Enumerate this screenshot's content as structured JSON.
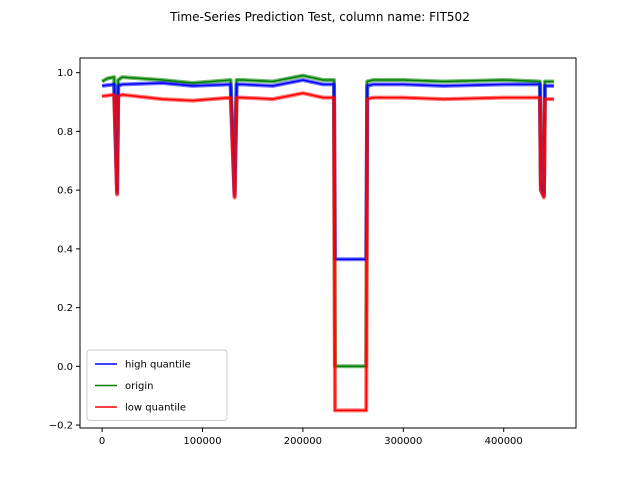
{
  "chart_data": {
    "type": "line",
    "title": "Time-Series Prediction Test, column name: FIT502",
    "xlabel": "",
    "ylabel": "",
    "xlim": [
      -22000,
      472000
    ],
    "ylim": [
      -0.21,
      1.05
    ],
    "x_ticks": [
      0,
      100000,
      200000,
      300000,
      400000
    ],
    "x_tick_labels": [
      "0",
      "100000",
      "200000",
      "300000",
      "400000"
    ],
    "y_ticks": [
      -0.2,
      0.0,
      0.2,
      0.4,
      0.6,
      0.8,
      1.0
    ],
    "y_tick_labels": [
      "−0.2",
      "0.0",
      "0.2",
      "0.4",
      "0.6",
      "0.8",
      "1.0"
    ],
    "grid": false,
    "legend_position": "lower-left",
    "series": [
      {
        "name": "high quantile",
        "color": "#0000ff",
        "x": [
          0,
          12000,
          15000,
          16000,
          20000,
          60000,
          90000,
          128000,
          132000,
          134000,
          140000,
          170000,
          200000,
          220000,
          231000,
          232000,
          263000,
          264000,
          270000,
          300000,
          340000,
          400000,
          436000,
          437000,
          440000,
          441000,
          450000
        ],
        "y": [
          0.955,
          0.96,
          0.59,
          0.955,
          0.96,
          0.965,
          0.955,
          0.96,
          0.58,
          0.96,
          0.96,
          0.955,
          0.975,
          0.96,
          0.96,
          0.365,
          0.365,
          0.955,
          0.96,
          0.96,
          0.955,
          0.96,
          0.96,
          0.6,
          0.58,
          0.955,
          0.955
        ]
      },
      {
        "name": "origin",
        "color": "#008000",
        "x": [
          0,
          5000,
          12000,
          15000,
          16000,
          20000,
          60000,
          90000,
          128000,
          132000,
          134000,
          140000,
          170000,
          200000,
          220000,
          231000,
          232000,
          263000,
          264000,
          270000,
          300000,
          340000,
          400000,
          436000,
          437000,
          440000,
          441000,
          450000
        ],
        "y": [
          0.97,
          0.98,
          0.985,
          0.6,
          0.975,
          0.985,
          0.975,
          0.965,
          0.975,
          0.59,
          0.975,
          0.975,
          0.97,
          0.99,
          0.975,
          0.975,
          0.0,
          0.0,
          0.97,
          0.975,
          0.975,
          0.97,
          0.975,
          0.97,
          0.62,
          0.59,
          0.97,
          0.97
        ]
      },
      {
        "name": "low quantile",
        "color": "#ff0000",
        "x": [
          0,
          12000,
          15000,
          16000,
          20000,
          60000,
          90000,
          128000,
          132000,
          134000,
          140000,
          170000,
          200000,
          220000,
          231000,
          232000,
          263000,
          264000,
          270000,
          300000,
          340000,
          400000,
          436000,
          437000,
          440000,
          441000,
          450000
        ],
        "y": [
          0.92,
          0.925,
          0.585,
          0.92,
          0.925,
          0.91,
          0.905,
          0.915,
          0.575,
          0.915,
          0.915,
          0.91,
          0.93,
          0.915,
          0.915,
          -0.15,
          -0.15,
          0.91,
          0.915,
          0.915,
          0.91,
          0.915,
          0.915,
          0.6,
          0.575,
          0.91,
          0.91
        ]
      }
    ]
  }
}
